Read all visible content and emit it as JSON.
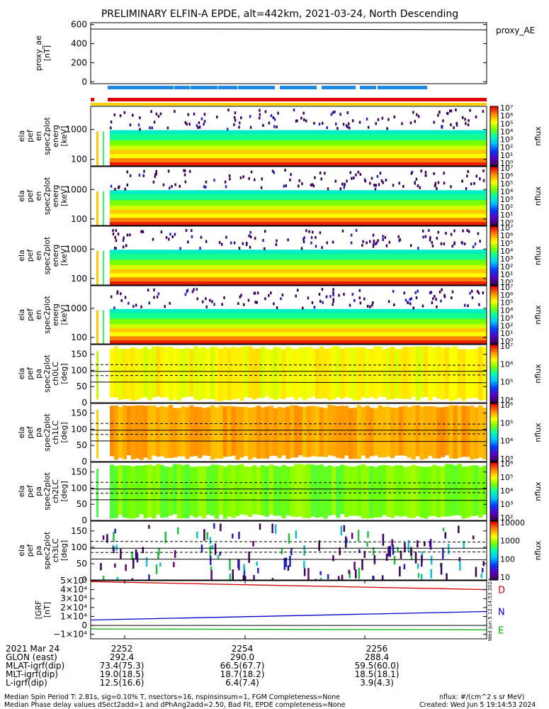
{
  "title": "PRELIMINARY ELFIN-A EPDE, alt=442km, 2021-03-24, North Descending",
  "panels": [
    {
      "id": "proxy_ae",
      "ylabel": [
        "proxy_ae",
        "[nT]"
      ],
      "ticks": [
        "600",
        "400",
        "200",
        "0"
      ],
      "legend": "proxy_AE"
    },
    {
      "id": "en0",
      "ylabel": [
        "ela",
        "pef",
        "en",
        "spec2plot",
        "energ",
        "[keV]"
      ],
      "ticks": [
        "1000",
        "100"
      ],
      "cbar": [
        "10⁷",
        "10⁶",
        "10⁵",
        "10⁴",
        "10³",
        "10²",
        "10¹",
        "10⁰"
      ],
      "cbar_label": "nflux"
    },
    {
      "id": "en1",
      "ylabel": [
        "ela",
        "pef",
        "en",
        "spec2plot",
        "energ",
        "[keV]"
      ],
      "ticks": [
        "1000",
        "100"
      ],
      "cbar": [
        "10⁷",
        "10⁶",
        "10⁵",
        "10⁴",
        "10³",
        "10²",
        "10¹",
        "10⁰"
      ],
      "cbar_label": "nflux"
    },
    {
      "id": "en2",
      "ylabel": [
        "ela",
        "pef",
        "en",
        "spec2plot",
        "energ",
        "[keV]"
      ],
      "ticks": [
        "1000",
        "100"
      ],
      "cbar": [
        "10⁷",
        "10⁶",
        "10⁵",
        "10⁴",
        "10³",
        "10²",
        "10¹",
        "10⁰"
      ],
      "cbar_label": "nflux"
    },
    {
      "id": "en3",
      "ylabel": [
        "ela",
        "pef",
        "en",
        "spec2plot",
        "energ",
        "[keV]"
      ],
      "ticks": [
        "1000",
        "100"
      ],
      "cbar": [
        "10⁷",
        "10⁶",
        "10⁵",
        "10⁴",
        "10³",
        "10²",
        "10¹",
        "10⁰"
      ],
      "cbar_label": "nflux"
    },
    {
      "id": "pa0",
      "ylabel": [
        "ela",
        "pef",
        "pa",
        "spec2plot",
        "ch0LC",
        "[deg]"
      ],
      "ticks": [
        "150",
        "100",
        "50",
        "0"
      ],
      "cbar": [
        "10⁷",
        "10⁶",
        "10⁵",
        "10⁴"
      ],
      "cbar_label": "nflux"
    },
    {
      "id": "pa1",
      "ylabel": [
        "ela",
        "pef",
        "pa",
        "spec2plot",
        "ch1LC",
        "[deg]"
      ],
      "ticks": [
        "150",
        "100",
        "50",
        "0"
      ],
      "cbar": [
        "10⁶",
        "10⁵",
        "10⁴",
        "10³"
      ],
      "cbar_label": "nflux"
    },
    {
      "id": "pa2",
      "ylabel": [
        "ela",
        "pef",
        "pa",
        "spec2plot",
        "ch2LC",
        "[deg]"
      ],
      "ticks": [
        "150",
        "100",
        "50",
        "0"
      ],
      "cbar": [
        "10⁶",
        "10⁵",
        "10⁴",
        "10³",
        "10²"
      ],
      "cbar_label": "nflux"
    },
    {
      "id": "pa3",
      "ylabel": [
        "ela",
        "pef",
        "pa",
        "spec2plot",
        "ch3LC",
        "[deg]"
      ],
      "ticks": [
        "150",
        "100",
        "50",
        "0"
      ],
      "cbar": [
        "10000",
        "1000",
        "100",
        "10"
      ],
      "cbar_label": "nflux"
    },
    {
      "id": "bfield",
      "ylabel": [
        "[GRF",
        "[nT]"
      ],
      "ticks": [
        "5×10⁴",
        "4×10⁴",
        "3×10⁴",
        "2×10⁴",
        "1×10⁴",
        "0",
        "−1×10⁴"
      ],
      "legend": [
        "D",
        "N",
        "E"
      ]
    }
  ],
  "footer": {
    "rows": [
      [
        "2021 Mar 24",
        "2252",
        "2254",
        "2256"
      ],
      [
        "GLON (east)",
        "292.4",
        "290.0",
        "288.4"
      ],
      [
        "MLAT-igrf(dip)",
        "73.4(75.3)",
        "66.5(67.7)",
        "59.5(60.0)"
      ],
      [
        "MLT-igrf(dip)",
        "19.0(18.5)",
        "18.7(18.2)",
        "18.5(18.1)"
      ],
      [
        "L-igrf(dip)",
        "12.5(16.6)",
        "6.4(7.4)",
        "3.9(4.3)"
      ]
    ],
    "note1": "Median Spin Period T: 2.81s, sig=0.10% T, nsectors=16, nspinsinsum=1, FGM Completeness=None",
    "note2": "Median Phase delay values dSect2add=1 and dPhAng2add=2.50, Bad Fit, EPDE completeness=None",
    "note3": "nflux: #/(cm^2 s sr MeV)",
    "note4": "Created: Wed Jun  5 19:14:53 2024",
    "stamp": "Wed Jun  5 12:14:53 2024"
  },
  "chart_data": [
    {
      "type": "line",
      "title": "PRELIMINARY ELFIN-A EPDE, alt=442km, 2021-03-24, North Descending",
      "ylabel": "proxy_ae [nT]",
      "ylim": [
        -20,
        620
      ],
      "series": [
        {
          "name": "proxy_AE",
          "x": [
            0,
            0.5,
            1
          ],
          "values": [
            553,
            552,
            545
          ]
        }
      ]
    },
    {
      "type": "heatmap",
      "ylabel": "ela pef en spec2plot energ [keV]",
      "yscale": "log",
      "ylim": [
        60,
        6000
      ],
      "zscale": "log",
      "zlim": [
        1,
        10000000
      ]
    },
    {
      "type": "heatmap",
      "ylabel": "ela pef en spec2plot energ [keV]",
      "yscale": "log",
      "ylim": [
        60,
        6000
      ],
      "zscale": "log",
      "zlim": [
        1,
        10000000
      ]
    },
    {
      "type": "heatmap",
      "ylabel": "ela pef en spec2plot energ [keV]",
      "yscale": "log",
      "ylim": [
        60,
        6000
      ],
      "zscale": "log",
      "zlim": [
        1,
        10000000
      ]
    },
    {
      "type": "heatmap",
      "ylabel": "ela pef en spec2plot energ [keV]",
      "yscale": "log",
      "ylim": [
        60,
        6000
      ],
      "zscale": "log",
      "zlim": [
        1,
        10000000
      ]
    },
    {
      "type": "heatmap",
      "ylabel": "ela pef pa spec2plot ch0LC [deg]",
      "ylim": [
        0,
        180
      ],
      "zlim": [
        3000,
        10000000
      ]
    },
    {
      "type": "heatmap",
      "ylabel": "ela pef pa spec2plot ch1LC [deg]",
      "ylim": [
        0,
        180
      ],
      "zlim": [
        300,
        3000000
      ]
    },
    {
      "type": "heatmap",
      "ylabel": "ela pef pa spec2plot ch2LC [deg]",
      "ylim": [
        0,
        180
      ],
      "zlim": [
        30,
        3000000
      ]
    },
    {
      "type": "heatmap",
      "ylabel": "ela pef pa spec2plot ch3LC [deg]",
      "ylim": [
        0,
        180
      ],
      "zlim": [
        10,
        10000
      ]
    },
    {
      "type": "line",
      "ylabel": "[GRF [nT]",
      "ylim": [
        -15000,
        50000
      ],
      "series": [
        {
          "name": "D",
          "color": "#d00000",
          "x": [
            0,
            1
          ],
          "values": [
            49000,
            40000
          ]
        },
        {
          "name": "N",
          "color": "#0000cc",
          "x": [
            0,
            1
          ],
          "values": [
            6000,
            15500
          ]
        },
        {
          "name": "E",
          "color": "#00b000",
          "x": [
            0,
            1
          ],
          "values": [
            -4000,
            -5000
          ]
        }
      ]
    }
  ]
}
